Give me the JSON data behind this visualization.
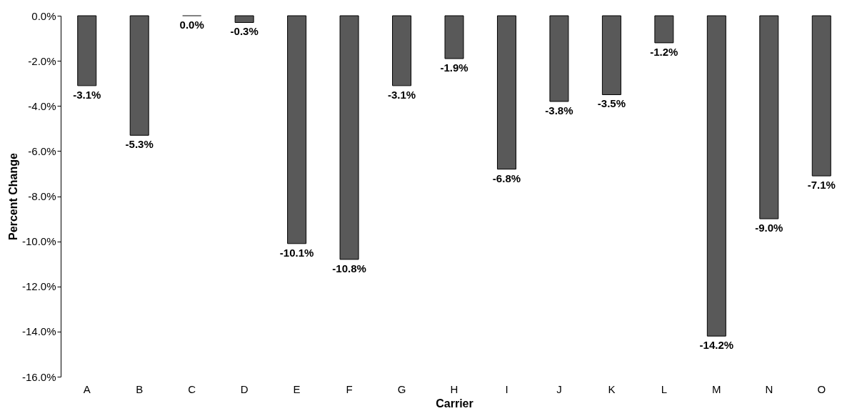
{
  "chart_data": {
    "type": "bar",
    "xlabel": "Carrier",
    "ylabel": "Percent Change",
    "categories": [
      "A",
      "B",
      "C",
      "D",
      "E",
      "F",
      "G",
      "H",
      "I",
      "J",
      "K",
      "L",
      "M",
      "N",
      "O"
    ],
    "values": [
      -3.1,
      -5.3,
      0.0,
      -0.3,
      -10.1,
      -10.8,
      -3.1,
      -1.9,
      -6.8,
      -3.8,
      -3.5,
      -1.2,
      -14.2,
      -9.0,
      -7.1
    ],
    "value_labels": [
      "-3.1%",
      "-5.3%",
      "0.0%",
      "-0.3%",
      "-10.1%",
      "-10.8%",
      "-3.1%",
      "-1.9%",
      "-6.8%",
      "-3.8%",
      "-3.5%",
      "-1.2%",
      "-14.2%",
      "-9.0%",
      "-7.1%"
    ],
    "color": "#595959",
    "ylim": [
      -16,
      0
    ],
    "yticks": [
      {
        "value": 0,
        "label": "0.0%"
      },
      {
        "value": -2,
        "label": "-2.0%"
      },
      {
        "value": -4,
        "label": "-4.0%"
      },
      {
        "value": -6,
        "label": "-6.0%"
      },
      {
        "value": -8,
        "label": "-8.0%"
      },
      {
        "value": -10,
        "label": "-10.0%"
      },
      {
        "value": -12,
        "label": "-12.0%"
      },
      {
        "value": -14,
        "label": "-14.0%"
      },
      {
        "value": -16,
        "label": "-16.0%"
      }
    ],
    "grid": false
  }
}
